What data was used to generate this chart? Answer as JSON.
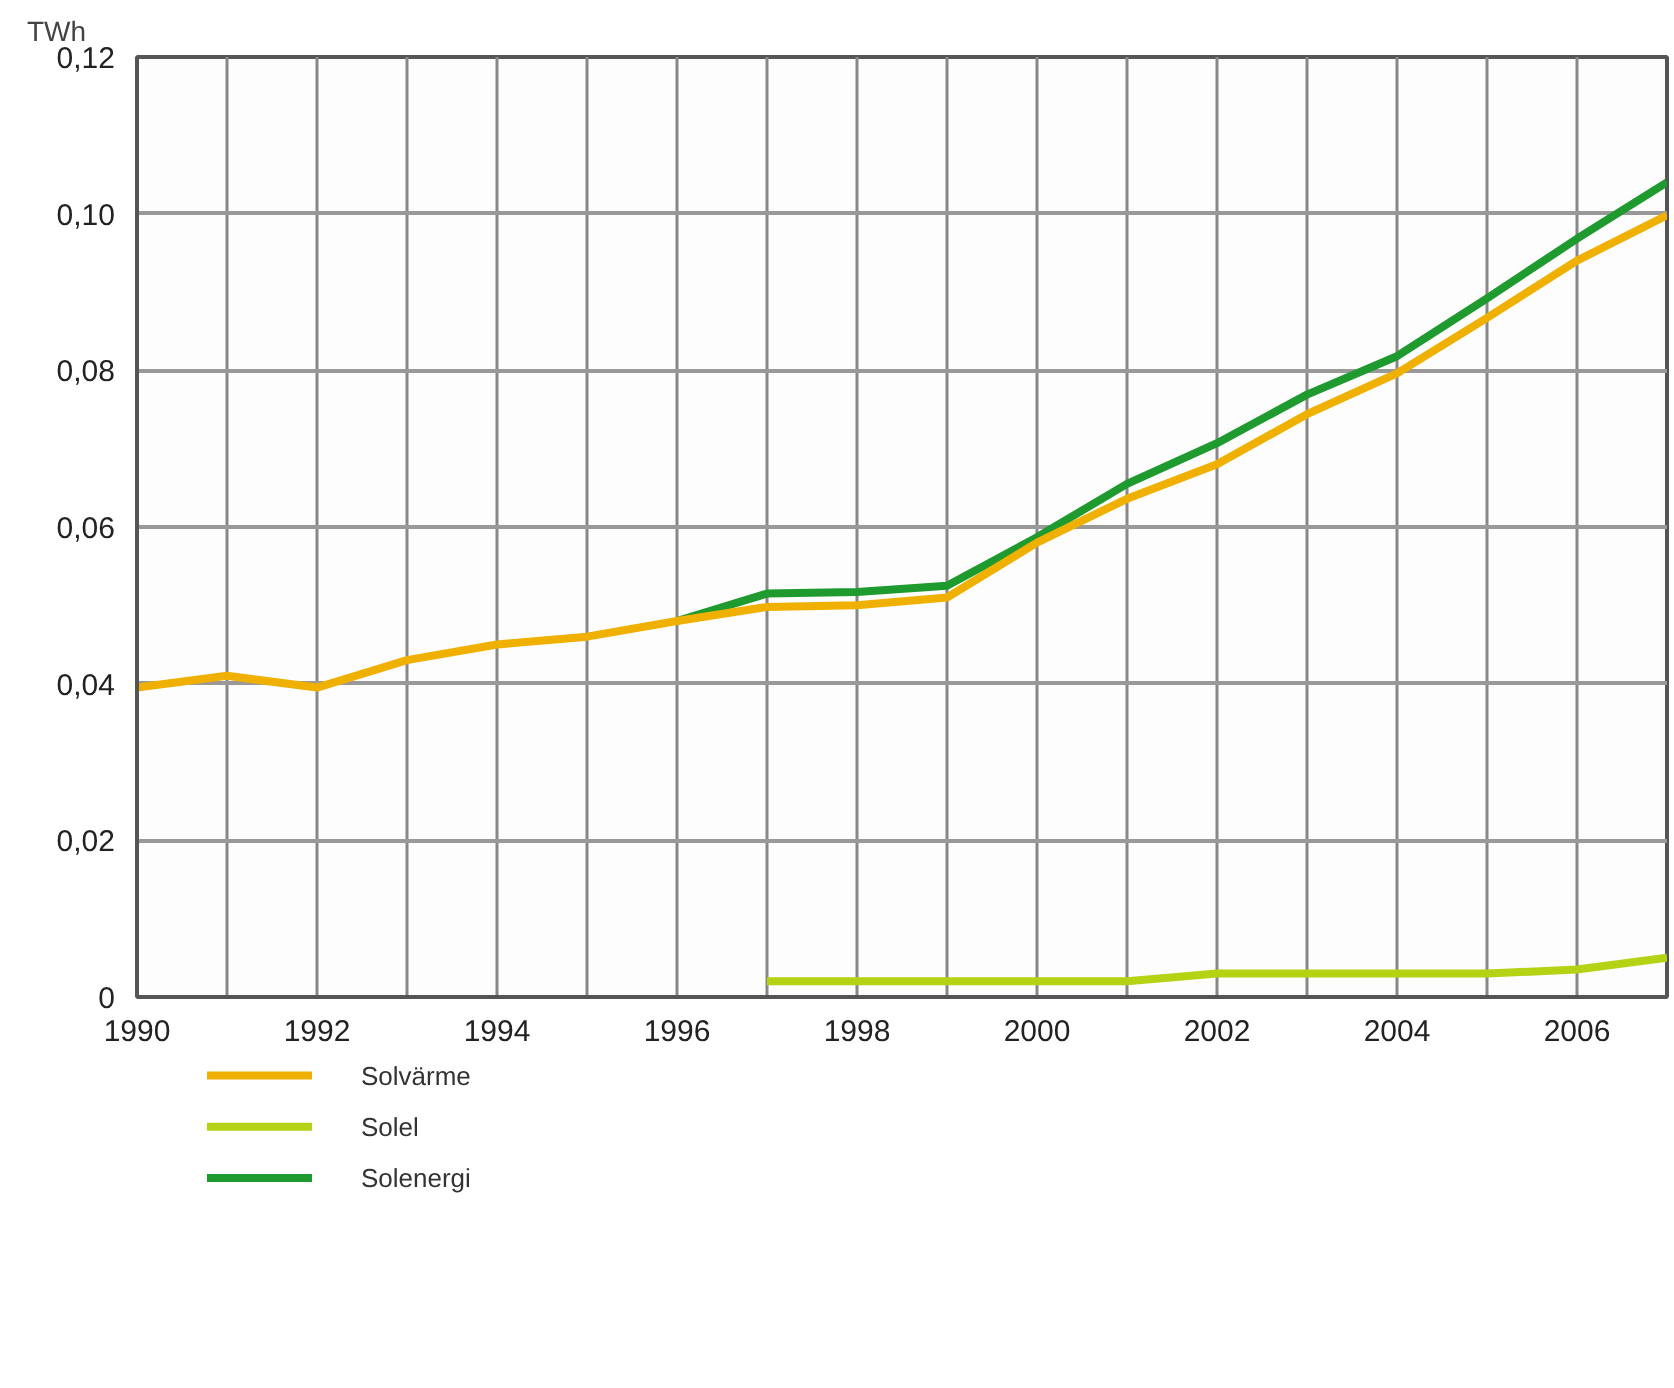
{
  "chart_data": {
    "type": "line",
    "ylabel": "TWh",
    "x": [
      1990,
      1991,
      1992,
      1993,
      1994,
      1995,
      1996,
      1997,
      1998,
      1999,
      2000,
      2001,
      2002,
      2003,
      2004,
      2005,
      2006,
      2007
    ],
    "series": [
      {
        "name": "Solvärme",
        "color": "#f0b000",
        "values": [
          0.0395,
          0.041,
          0.0395,
          0.043,
          0.045,
          0.046,
          0.048,
          0.0498,
          0.05,
          0.051,
          0.058,
          0.0636,
          0.068,
          0.0744,
          0.0796,
          0.0867,
          0.094,
          0.0998
        ]
      },
      {
        "name": "Solel",
        "color": "#b5d214",
        "values": [
          null,
          null,
          null,
          null,
          null,
          null,
          null,
          0.002,
          0.002,
          0.002,
          0.002,
          0.002,
          0.003,
          0.003,
          0.003,
          0.003,
          0.0035,
          0.005
        ]
      },
      {
        "name": "Solenergi",
        "color": "#1f9a2e",
        "values": [
          null,
          null,
          null,
          null,
          null,
          null,
          0.048,
          0.0515,
          0.0517,
          0.0525,
          0.0587,
          0.0655,
          0.0707,
          0.0769,
          0.0818,
          0.0892,
          0.0968,
          0.104
        ]
      }
    ],
    "xlim": [
      1990,
      2007
    ],
    "xticks": [
      1990,
      {
        "value": 1991,
        "label": null
      },
      1992,
      {
        "value": 1993,
        "label": null
      },
      1994,
      {
        "value": 1995,
        "label": null
      },
      1996,
      {
        "value": 1997,
        "label": null
      },
      1998,
      {
        "value": 1999,
        "label": null
      },
      2000,
      {
        "value": 2001,
        "label": null
      },
      2002,
      {
        "value": 2003,
        "label": null
      },
      2004,
      {
        "value": 2005,
        "label": null
      },
      2006
    ],
    "ylim": [
      0,
      0.12
    ],
    "yticks": [
      0,
      {
        "value": 0.02,
        "label": "0,02"
      },
      {
        "value": 0.04,
        "label": "0,04"
      },
      {
        "value": 0.06,
        "label": "0,06"
      },
      {
        "value": 0.08,
        "label": "0,08"
      },
      {
        "value": 0.1,
        "label": "0,10"
      },
      {
        "value": 0.12,
        "label": "0,12"
      }
    ],
    "grid": true,
    "legend": "bottom",
    "line_style": "solid",
    "marker": "none"
  }
}
